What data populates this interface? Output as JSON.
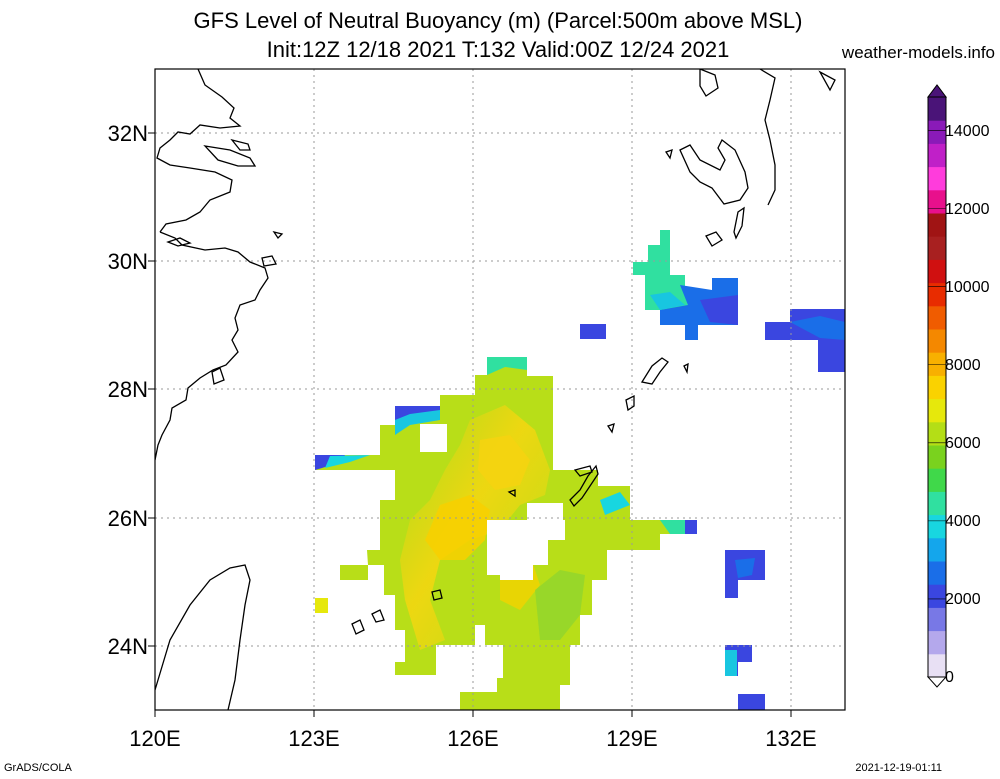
{
  "title_line1": "GFS Level of Neutral Buoyancy (m) (Parcel:500m above MSL)",
  "title_line2": "Init:12Z 12/18 2021 T:132 Valid:00Z 12/24 2021",
  "source_label": "weather-models.info",
  "footer_left": "GrADS/COLA",
  "footer_right": "2021-12-19-01:11",
  "map": {
    "lon_range": [
      120,
      133
    ],
    "lat_range": [
      23,
      33
    ],
    "grid": true,
    "lat_labels": [
      "32N",
      "30N",
      "28N",
      "26N",
      "24N"
    ],
    "lon_labels": [
      "120E",
      "123E",
      "126E",
      "129E",
      "132E"
    ]
  },
  "colorbar": {
    "labels": [
      "0",
      "2000",
      "4000",
      "6000",
      "8000",
      "10000",
      "12000",
      "14000"
    ],
    "colors": [
      "#e8e0f4",
      "#b4a8ec",
      "#7878e6",
      "#3a46e0",
      "#1a6ee8",
      "#14a6ec",
      "#18d6e0",
      "#30e0a0",
      "#40d84a",
      "#7ad21e",
      "#b4de16",
      "#e6e80c",
      "#fad200",
      "#f8b000",
      "#f48800",
      "#f05c00",
      "#e82c00",
      "#d01010",
      "#a82020",
      "#a01414",
      "#e8108c",
      "#ff3cdc",
      "#c020c8",
      "#8a1ab8",
      "#4a1478"
    ]
  }
}
